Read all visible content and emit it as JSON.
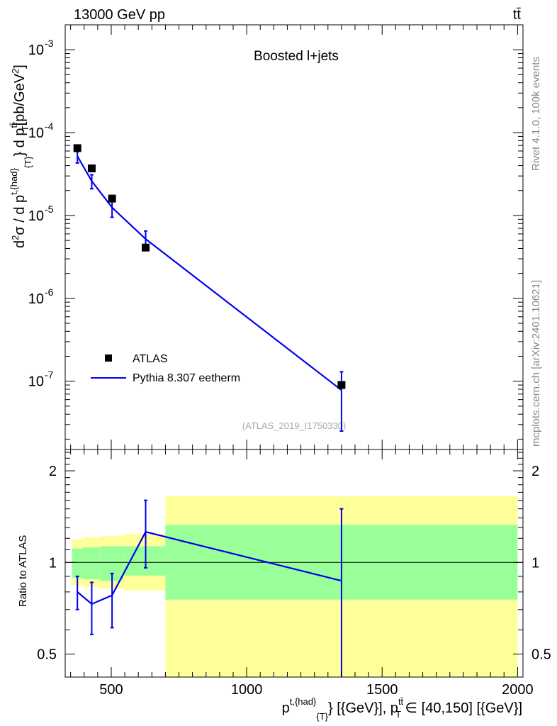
{
  "header": {
    "energy_label": "13000 GeV pp",
    "process_label": "tt̄"
  },
  "side_labels": {
    "rivet": "Rivet 4.1.0,  100k events",
    "site": "mcplots.cern.ch [arXiv:2401.10621]"
  },
  "colors": {
    "mc": "#0000ee",
    "data": "#000000",
    "band_inner": "#99ff99",
    "band_outer": "#ffff99"
  },
  "chart_data": [
    {
      "type": "scatter",
      "title": "Boosted l+jets",
      "analysis_label": "(ATLAS_2019_I1750330)",
      "ylabel_parts": [
        "d",
        "2",
        "σ  /  d p",
        "t,{had}",
        "{T}",
        "} d p",
        "tt̄",
        "T",
        "[pb/GeV",
        "2",
        "]"
      ],
      "yscale": "log",
      "ylim": [
        1.5e-08,
        0.002
      ],
      "xlim": [
        330,
        2020
      ],
      "ytick_labels": [
        {
          "base": "10",
          "exp": "-7",
          "value": 1e-07
        },
        {
          "base": "10",
          "exp": "-6",
          "value": 1e-06
        },
        {
          "base": "10",
          "exp": "-5",
          "value": 1e-05
        },
        {
          "base": "10",
          "exp": "-4",
          "value": 0.0001
        },
        {
          "base": "10",
          "exp": "-3",
          "value": 0.001
        }
      ],
      "legend": [
        "ATLAS",
        "Pythia 8.307 eetherm"
      ],
      "series": [
        {
          "name": "ATLAS",
          "points": [
            {
              "x": 375,
              "y": 6.5e-05
            },
            {
              "x": 428,
              "y": 3.7e-05
            },
            {
              "x": 503,
              "y": 1.6e-05
            },
            {
              "x": 627,
              "y": 4.1e-06
            },
            {
              "x": 1350,
              "y": 9e-08
            }
          ]
        },
        {
          "name": "Pythia 8.307 eetherm",
          "points": [
            {
              "x": 375,
              "y": 5.2e-05,
              "lo": 4.3e-05,
              "hi": 5.9e-05
            },
            {
              "x": 428,
              "y": 2.6e-05,
              "lo": 2.1e-05,
              "hi": 3.1e-05
            },
            {
              "x": 503,
              "y": 1.25e-05,
              "lo": 9.5e-06,
              "hi": 1.5e-05
            },
            {
              "x": 627,
              "y": 5.2e-06,
              "lo": 4e-06,
              "hi": 6.5e-06
            },
            {
              "x": 1350,
              "y": 7.8e-08,
              "lo": 2.5e-08,
              "hi": 1.3e-07
            }
          ]
        }
      ]
    },
    {
      "type": "line",
      "ylabel": "Ratio to ATLAS",
      "xlabel_parts": [
        "p",
        "t,{had}",
        "{T}",
        "} [{GeV}], p",
        "tt̄",
        "T",
        " ∈ [40,150] [{GeV}]"
      ],
      "xlim": [
        330,
        2020
      ],
      "ylim": [
        0.42,
        2.35
      ],
      "yscale": "log",
      "xticks": [
        500,
        1000,
        1500,
        2000
      ],
      "xtick_labels": [
        "500",
        "1000",
        "1500",
        "2000"
      ],
      "yticks": [
        0.5,
        1,
        2
      ],
      "ytick_labels": [
        "0.5",
        "1",
        "2"
      ],
      "reference_line": 1,
      "bands": [
        {
          "x0": 355,
          "x1": 395,
          "inner": [
            0.89,
            1.11
          ],
          "outer": [
            0.84,
            1.19
          ]
        },
        {
          "x0": 395,
          "x1": 460,
          "inner": [
            0.88,
            1.12
          ],
          "outer": [
            0.83,
            1.21
          ]
        },
        {
          "x0": 460,
          "x1": 545,
          "inner": [
            0.87,
            1.13
          ],
          "outer": [
            0.82,
            1.22
          ]
        },
        {
          "x0": 545,
          "x1": 700,
          "inner": [
            0.905,
            1.13
          ],
          "outer": [
            0.81,
            1.24
          ]
        },
        {
          "x0": 700,
          "x1": 2000,
          "inner": [
            0.755,
            1.33
          ],
          "outer": [
            0.29,
            1.65
          ]
        }
      ],
      "series": [
        {
          "name": "Pythia 8.307 eetherm",
          "points": [
            {
              "x": 375,
              "y": 0.8,
              "lo": 0.7,
              "hi": 0.9
            },
            {
              "x": 428,
              "y": 0.73,
              "lo": 0.58,
              "hi": 0.86
            },
            {
              "x": 503,
              "y": 0.78,
              "lo": 0.61,
              "hi": 0.92
            },
            {
              "x": 627,
              "y": 1.26,
              "lo": 0.96,
              "hi": 1.6
            },
            {
              "x": 1350,
              "y": 0.87,
              "lo": 0.3,
              "hi": 1.5
            }
          ]
        }
      ]
    }
  ]
}
